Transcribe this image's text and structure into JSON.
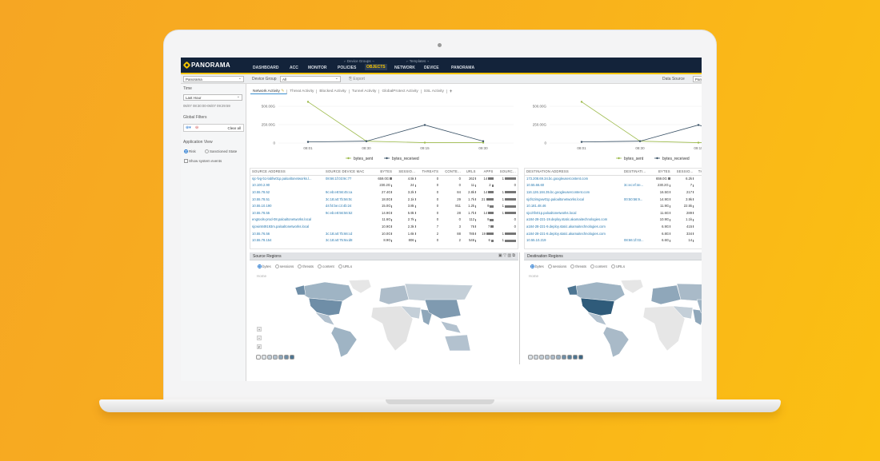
{
  "header": {
    "logo": "PANORAMA",
    "nav": [
      "DASHBOARD",
      "ACC",
      "MONITOR",
      "POLICIES",
      "OBJECTS",
      "NETWORK",
      "DEVICE",
      "PANORAMA"
    ],
    "active": "OBJECTS",
    "group_device": "⌐ Device Groups ¬",
    "group_templates": "⌐ Templates ¬"
  },
  "toolbar": {
    "context": "Panorama",
    "device_group_label": "Device Group",
    "device_group_value": "All",
    "export": "Export",
    "data_source_label": "Data Source",
    "data_source_value": "Pan"
  },
  "sidebar": {
    "time_label": "Time",
    "time_value": "Last Hour",
    "time_range": "06/07 08:30:00-06/07 09:29:59",
    "global_filters": "Global Filters",
    "clear_all": "Clear all",
    "app_view": "Application View",
    "risk": "Risk",
    "sanctioned": "Sanctioned State",
    "show_system": "Show system events"
  },
  "tabs": [
    "Network Activity",
    "Threat Activity",
    "Blocked Activity",
    "Tunnel Activity",
    "GlobalProtect Activity",
    "SSL Activity"
  ],
  "chart": {
    "type": "line",
    "x": [
      "08:01",
      "08:30",
      "09:15",
      "09:30"
    ],
    "yticks": [
      "500.00G",
      "250.00G",
      "0"
    ],
    "ylim": [
      0,
      500
    ],
    "series": [
      {
        "name": "bytes_sent",
        "values": [
          560,
          25,
          5,
          5
        ],
        "color": "#9cba4a"
      },
      {
        "name": "bytes_received",
        "values": [
          15,
          25,
          245,
          25
        ],
        "color": "#3a5266"
      }
    ]
  },
  "source_table": {
    "headers": [
      "SOURCE ADDRESS",
      "SOURCE DEVICE MAC",
      "BYTES",
      "SESSIO...",
      "THREATS",
      "CONTE...",
      "URLS",
      "APPS",
      "SOURC..."
    ],
    "rows": [
      [
        "sjc-fvg-b1-labfw01p.paloaltonetworks.l...",
        "08:66:1f:03:9c:77",
        "659.0G",
        "4.5k",
        "0",
        "0",
        "262",
        "14",
        "1"
      ],
      [
        "10.100.2.90",
        "",
        "230.2G",
        "24",
        "0",
        "0",
        "11",
        "2",
        "0"
      ],
      [
        "10.55.78.52",
        "9c:eb:e8:56:45:ca",
        "27.4G",
        "3.2k",
        "0",
        "84",
        "2.8k",
        "14",
        "1"
      ],
      [
        "10.55.78.51",
        "3c:18:a0:7b:56:0c",
        "18.0G",
        "2.1k",
        "0",
        "29",
        "1.7k",
        "21",
        "1"
      ],
      [
        "10.55.10.190",
        "d4:f4:be:c3:4b:24",
        "15.0G",
        "3.8k",
        "0",
        "811",
        "1.2k",
        "9",
        "1"
      ],
      [
        "10.55.78.55",
        "9c:eb:e8:56:56:52",
        "14.9G",
        "5.9k",
        "0",
        "28",
        "1.7k",
        "14",
        "1"
      ],
      [
        "engtools-prod-08.paloaltonetworks.local",
        "",
        "11.6G",
        "2.7k",
        "0",
        "0",
        "112",
        "9",
        "0"
      ],
      [
        "sjcwin849193m.paloaltonetworks.local",
        "",
        "10.9G",
        "2.3k",
        "7",
        "3",
        "76",
        "7",
        "0"
      ],
      [
        "10.55.76.56",
        "3c:18:a0:7b:66:cd",
        "10.0G",
        "1.6k",
        "2",
        "88",
        "785",
        "19",
        "1"
      ],
      [
        "10.55.78.154",
        "3c:18:a0:75:9a:d8",
        "8.9G",
        "806",
        "0",
        "2",
        "546",
        "6",
        "1"
      ]
    ]
  },
  "dest_table": {
    "headers": [
      "DESTINATION ADDRESS",
      "DESTINATI...",
      "BYTES",
      "SESSIO...",
      "THR"
    ],
    "rows": [
      [
        "173.208.69.34.bc.googleusercontent.com",
        "",
        "659.0G",
        "6.2k",
        ""
      ],
      [
        "10.55.66.60",
        "3c:ec:ef:4e...",
        "230.2G",
        "7",
        ""
      ],
      [
        "116.126.184.35.bc.googleusercontent.com",
        "",
        "16.5G",
        "217",
        ""
      ],
      [
        "sjcfs2imgvw01p.paloaltonetworks.local",
        "00:50:56:9...",
        "14.9G",
        "3.9k",
        "1"
      ],
      [
        "10.181.48.46",
        "",
        "11.9G",
        "22.5k",
        ""
      ],
      [
        "sjcohfv01p.paloaltonetworks.local",
        "",
        "11.6G",
        "289",
        ""
      ],
      [
        "a184-28-221-19.deploy.static.akamaitechnologies.com",
        "",
        "10.9G",
        "1.1k",
        ""
      ],
      [
        "a184-28-221-9.deploy.static.akamaitechnologies.com",
        "",
        "6.9G",
        "415",
        ""
      ],
      [
        "a184-28-221-8.deploy.static.akamaitechnologies.com",
        "",
        "6.8G",
        "334",
        ""
      ],
      [
        "10.55.10.219",
        "08:66:1f:03...",
        "6.6G",
        "14",
        ""
      ]
    ]
  },
  "regions": {
    "source_title": "Source Regions",
    "dest_title": "Destination Regions",
    "options": [
      "bytes",
      "sessions",
      "threats",
      "content",
      "URLs"
    ],
    "selected": "bytes",
    "home": "Home"
  }
}
